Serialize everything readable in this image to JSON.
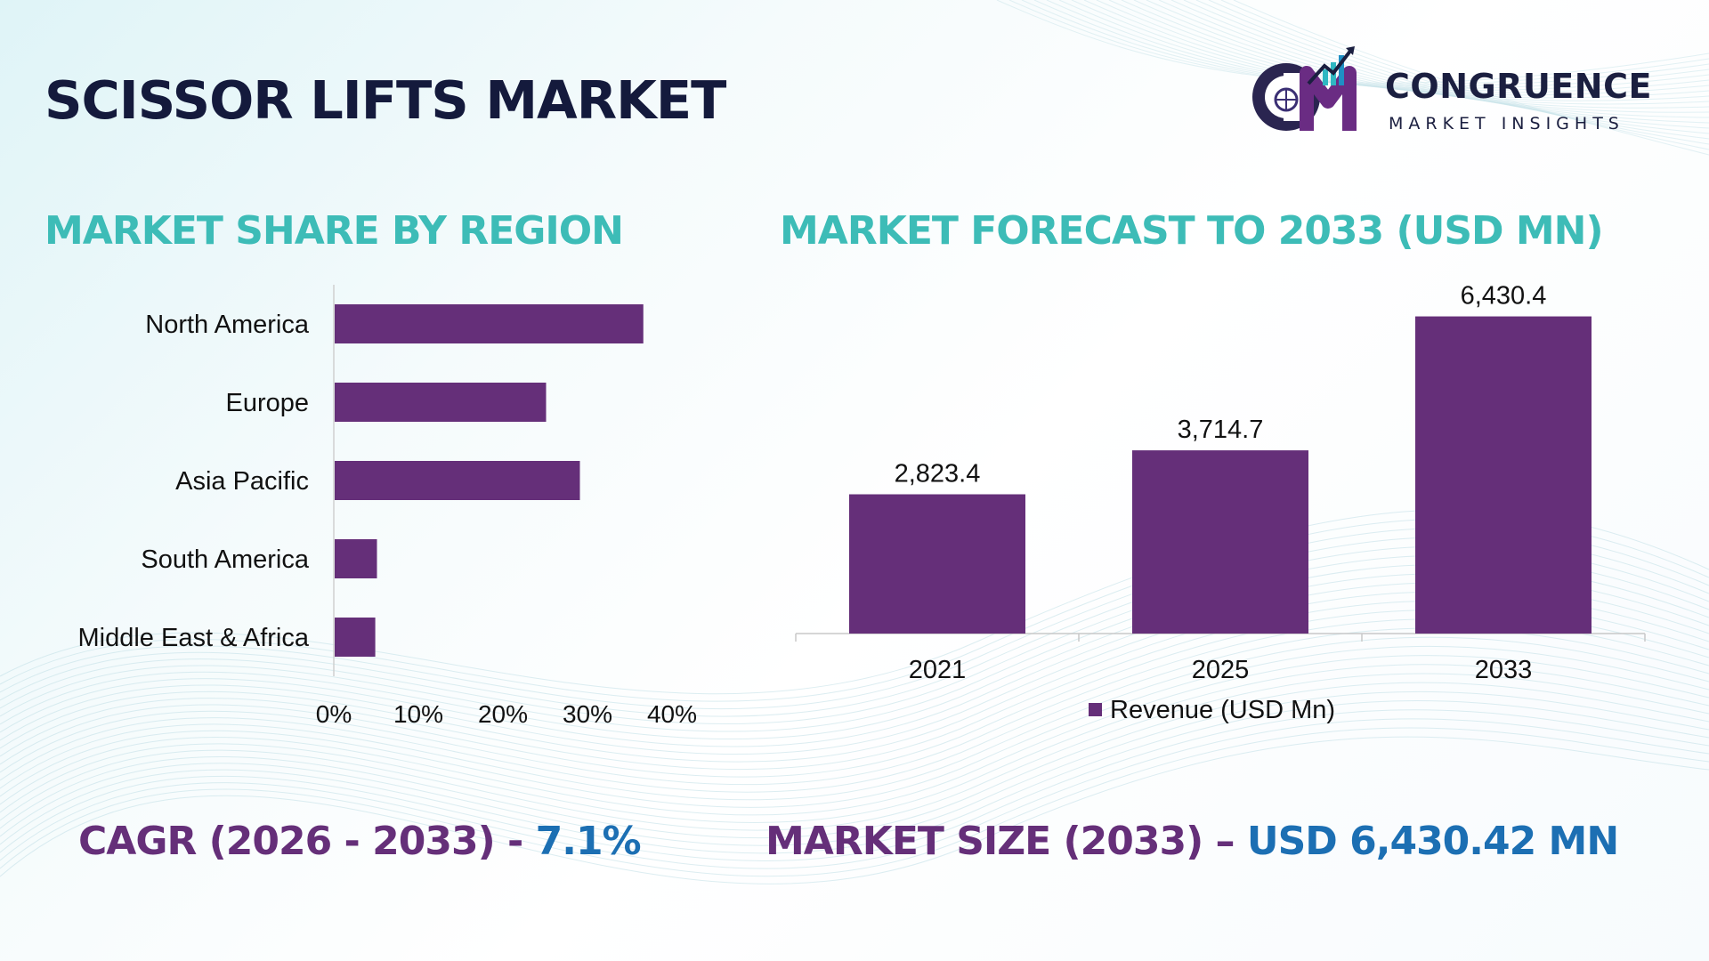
{
  "title": "SCISSOR LIFTS MARKET",
  "logo": {
    "name": "CONGRUENCE",
    "subtitle": "MARKET INSIGHTS"
  },
  "colors": {
    "bar": "#652f79",
    "section_title": "#3dbcb7",
    "main_title": "#141a3c",
    "highlight": "#1c6fb3"
  },
  "chart_data": [
    {
      "type": "bar",
      "orientation": "horizontal",
      "title": "MARKET SHARE BY REGION",
      "categories": [
        "North America",
        "Europe",
        "Asia Pacific",
        "South America",
        "Middle East & Africa"
      ],
      "values": [
        36.5,
        25,
        29,
        5,
        4.8
      ],
      "xlim": [
        0,
        40
      ],
      "xticks": [
        "0%",
        "10%",
        "20%",
        "30%",
        "40%"
      ],
      "grid": false
    },
    {
      "type": "bar",
      "orientation": "vertical",
      "title": "MARKET FORECAST TO 2033 (USD MN)",
      "categories": [
        "2021",
        "2025",
        "2033"
      ],
      "series": [
        {
          "name": "Revenue (USD Mn)",
          "values": [
            2823.4,
            3714.7,
            6430.4
          ],
          "labels": [
            "2,823.4",
            "3,714.7",
            "6,430.4"
          ]
        }
      ],
      "ylim": [
        0,
        7000
      ],
      "legend": "bottom",
      "grid": false
    }
  ],
  "footer": {
    "cagr_label": "CAGR (2026 - 2033) - ",
    "cagr_value": "7.1%",
    "size_label": "MARKET SIZE (2033) – ",
    "size_value": "USD 6,430.42 MN"
  }
}
